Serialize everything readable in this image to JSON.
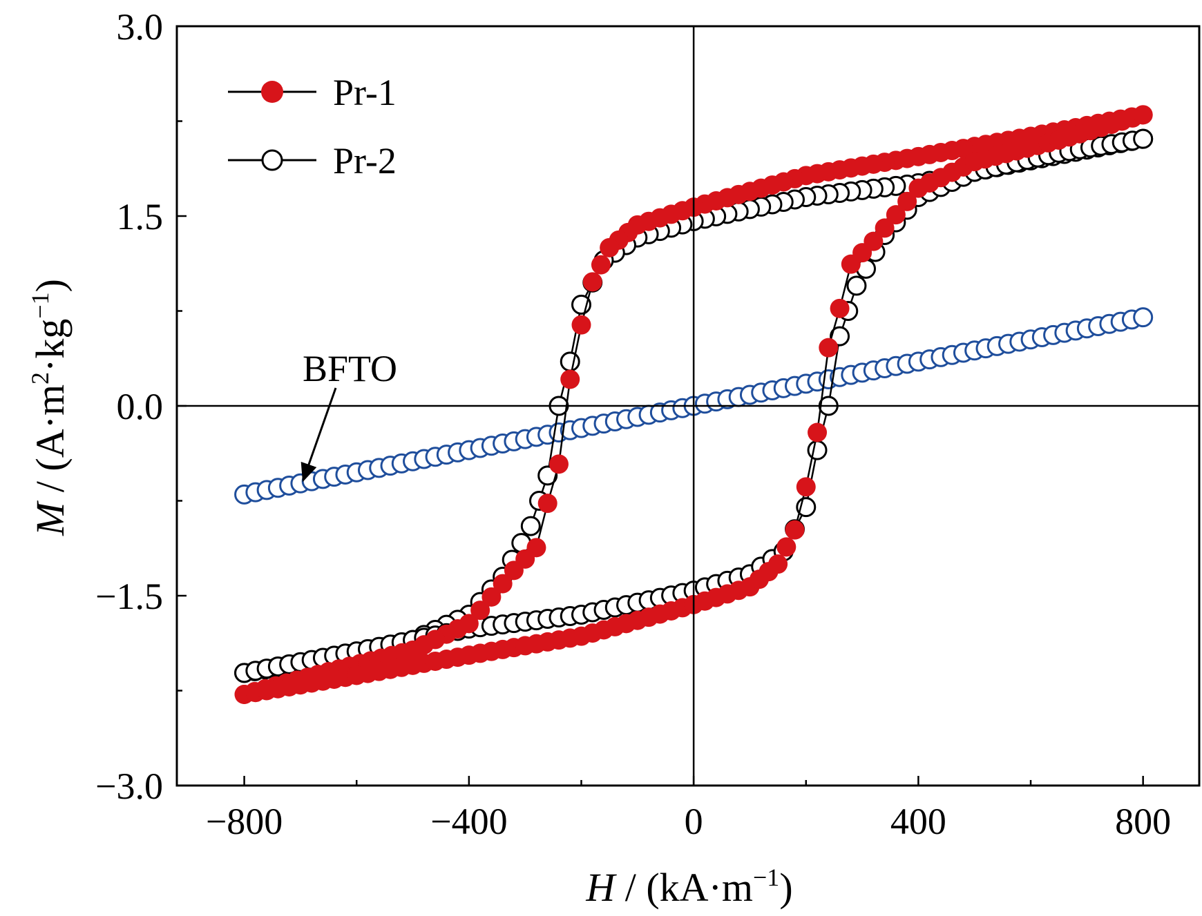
{
  "chart_data": {
    "type": "scatter",
    "title": "",
    "xlabel_var": "H",
    "xlabel_rest": " / (kA·m",
    "xlabel_sup": "−1",
    "xlabel_close": ")",
    "ylabel_var": "M",
    "ylabel_rest": " / (A·m",
    "ylabel_sup1": "2",
    "ylabel_mid": "·kg",
    "ylabel_sup2": "−1",
    "ylabel_close": ")",
    "xlim": [
      -920,
      900
    ],
    "ylim": [
      -3.0,
      3.0
    ],
    "x_ticks": [
      -800,
      -400,
      0,
      400,
      800
    ],
    "x_tick_labels": [
      "−800",
      "−400",
      "0",
      "400",
      "800"
    ],
    "y_ticks": [
      -3.0,
      -1.5,
      0.0,
      1.5,
      3.0
    ],
    "y_tick_labels": [
      "−3.0",
      "−1.5",
      "0.0",
      "1.5",
      "3.0"
    ],
    "zero_lines": true,
    "grid": false,
    "legend_position": "top-left",
    "colors": {
      "pr1": "#d7141a",
      "pr2": "#000000",
      "bfto": "#1f4e9c"
    },
    "series": [
      {
        "name": "Pr-1",
        "marker": "filled-circle",
        "descending": {
          "x": [
            800,
            600,
            400,
            200,
            0,
            -100,
            -150,
            -180,
            -200,
            -220,
            -240,
            -260,
            -280,
            -320,
            -400,
            -500,
            -650,
            -800
          ],
          "y": [
            2.3,
            2.13,
            1.97,
            1.82,
            1.57,
            1.43,
            1.25,
            0.98,
            0.64,
            0.21,
            -0.46,
            -0.77,
            -1.12,
            -1.3,
            -1.72,
            -1.93,
            -2.1,
            -2.28
          ]
        },
        "ascending": {
          "x": [
            -800,
            -600,
            -400,
            -200,
            0,
            100,
            150,
            180,
            200,
            220,
            240,
            260,
            280,
            320,
            400,
            500,
            650,
            800
          ],
          "y": [
            -2.28,
            -2.13,
            -1.97,
            -1.82,
            -1.57,
            -1.43,
            -1.25,
            -0.98,
            -0.64,
            -0.21,
            0.46,
            0.77,
            1.12,
            1.3,
            1.72,
            1.93,
            2.1,
            2.3
          ]
        }
      },
      {
        "name": "Pr-2",
        "marker": "open-circle",
        "descending": {
          "x": [
            800,
            600,
            400,
            200,
            0,
            -100,
            -160,
            -200,
            -220,
            -240,
            -260,
            -290,
            -340,
            -400,
            -500,
            -650,
            -800
          ],
          "y": [
            2.11,
            1.94,
            1.76,
            1.65,
            1.46,
            1.33,
            1.15,
            0.8,
            0.35,
            0.0,
            -0.55,
            -0.95,
            -1.35,
            -1.65,
            -1.85,
            -2.0,
            -2.11
          ]
        },
        "ascending": {
          "x": [
            -800,
            -600,
            -400,
            -200,
            0,
            100,
            160,
            200,
            220,
            240,
            260,
            290,
            340,
            400,
            500,
            650,
            800
          ],
          "y": [
            -2.11,
            -1.94,
            -1.76,
            -1.65,
            -1.46,
            -1.33,
            -1.15,
            -0.8,
            -0.35,
            0.0,
            0.55,
            0.95,
            1.35,
            1.65,
            1.85,
            2.0,
            2.11
          ]
        }
      },
      {
        "name": "BFTO",
        "marker": "open-circle",
        "x": [
          -800,
          800
        ],
        "y": [
          -0.7,
          0.7
        ]
      }
    ],
    "annotations": [
      {
        "text": "BFTO",
        "points_to_x": -690,
        "points_to_y": -0.63
      }
    ]
  }
}
